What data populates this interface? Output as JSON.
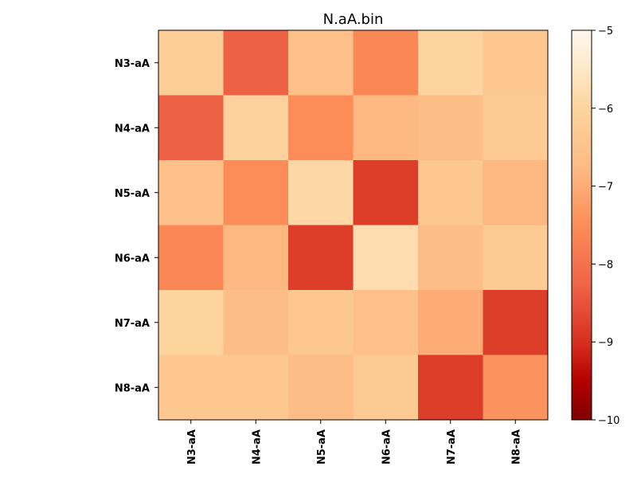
{
  "chart_data": {
    "type": "heatmap",
    "title": "N.aA.bin",
    "x_labels": [
      "N3-aA",
      "N4-aA",
      "N5-aA",
      "N6-aA",
      "N7-aA",
      "N8-aA"
    ],
    "y_labels": [
      "N3-aA",
      "N4-aA",
      "N5-aA",
      "N6-aA",
      "N7-aA",
      "N8-aA"
    ],
    "values": [
      [
        -6.2,
        -8.3,
        -6.6,
        -7.6,
        -6.0,
        -6.4
      ],
      [
        -8.3,
        -6.1,
        -7.5,
        -6.8,
        -6.7,
        -6.3
      ],
      [
        -6.6,
        -7.5,
        -5.9,
        -8.8,
        -6.4,
        -6.8
      ],
      [
        -7.6,
        -6.8,
        -8.8,
        -5.8,
        -6.7,
        -6.3
      ],
      [
        -6.0,
        -6.7,
        -6.4,
        -6.6,
        -7.0,
        -8.8
      ],
      [
        -6.4,
        -6.4,
        -6.7,
        -6.3,
        -8.8,
        -7.4
      ]
    ],
    "colormap": "OrRd_r",
    "colorbar": {
      "min": -10,
      "max": -5,
      "ticks": [
        -5,
        -6,
        -7,
        -8,
        -9,
        -10
      ]
    }
  }
}
